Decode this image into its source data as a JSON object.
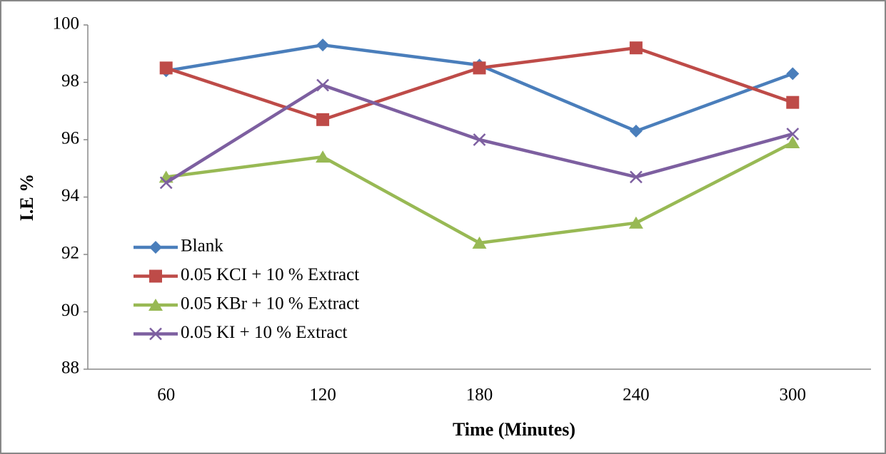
{
  "chart_data": {
    "type": "line",
    "y_label": "I.E %",
    "x_label": "Time (Minutes)",
    "categories": [
      "60",
      "120",
      "180",
      "240",
      "300"
    ],
    "ylim": [
      88,
      100
    ],
    "yticks": [
      88,
      90,
      92,
      94,
      96,
      98,
      100
    ],
    "legend": "left",
    "series": [
      {
        "name": "Blank",
        "color": "#4a7ebb",
        "marker": "diamond",
        "values": [
          98.4,
          99.3,
          98.6,
          96.3,
          98.3
        ]
      },
      {
        "name": "0.05 KCI + 10 % Extract",
        "color": "#be4b48",
        "marker": "square",
        "values": [
          98.5,
          96.7,
          98.5,
          99.2,
          97.3
        ]
      },
      {
        "name": "0.05 KBr + 10 % Extract",
        "color": "#98b954",
        "marker": "triangle",
        "values": [
          94.7,
          95.4,
          92.4,
          93.1,
          95.9
        ]
      },
      {
        "name": "0.05 KI + 10 % Extract",
        "color": "#7d5fa0",
        "marker": "x",
        "values": [
          94.5,
          97.9,
          96.0,
          94.7,
          96.2
        ]
      }
    ]
  }
}
